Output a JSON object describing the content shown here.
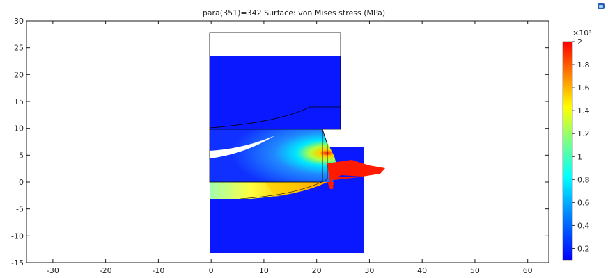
{
  "plot": {
    "title": "para(351)=342   Surface: von Mises stress (MPa)"
  },
  "colors": {
    "background": "#ffffff",
    "frame": "#1a1a1a",
    "die_blue": "#0a18ff",
    "stress_red": "#ff1a00"
  },
  "chart_data": {
    "type": "heatmap",
    "title": "para(351)=342   Surface: von Mises stress (MPa)",
    "xlim": [
      -35,
      64
    ],
    "ylim": [
      -15,
      30
    ],
    "x_ticks": [
      -30,
      -20,
      -10,
      0,
      10,
      20,
      30,
      40,
      50,
      60
    ],
    "y_ticks": [
      -15,
      -10,
      -5,
      0,
      5,
      10,
      15,
      20,
      25,
      30
    ],
    "colorbar": {
      "exponent_label": "×10³",
      "range": [
        0.1,
        2
      ],
      "ticks": [
        0.2,
        0.4,
        0.6,
        0.8,
        1,
        1.2,
        1.4,
        1.6,
        1.8,
        2
      ],
      "colormap": "rainbow"
    },
    "regions": {
      "upper_die": {
        "x": [
          0,
          24.5
        ],
        "y": [
          9.8,
          23.5
        ],
        "stress": 0.1
      },
      "upper_die_outline_top": 28,
      "lower_die": {
        "x": [
          0,
          29
        ],
        "y": [
          -13.3,
          6.5
        ],
        "stress": 0.1
      },
      "workpiece": {
        "x": [
          0,
          22
        ],
        "y": [
          -3.5,
          9.8
        ],
        "stress_range": [
          0.1,
          2
        ]
      }
    }
  },
  "icons": {
    "corner": "camera-icon"
  }
}
